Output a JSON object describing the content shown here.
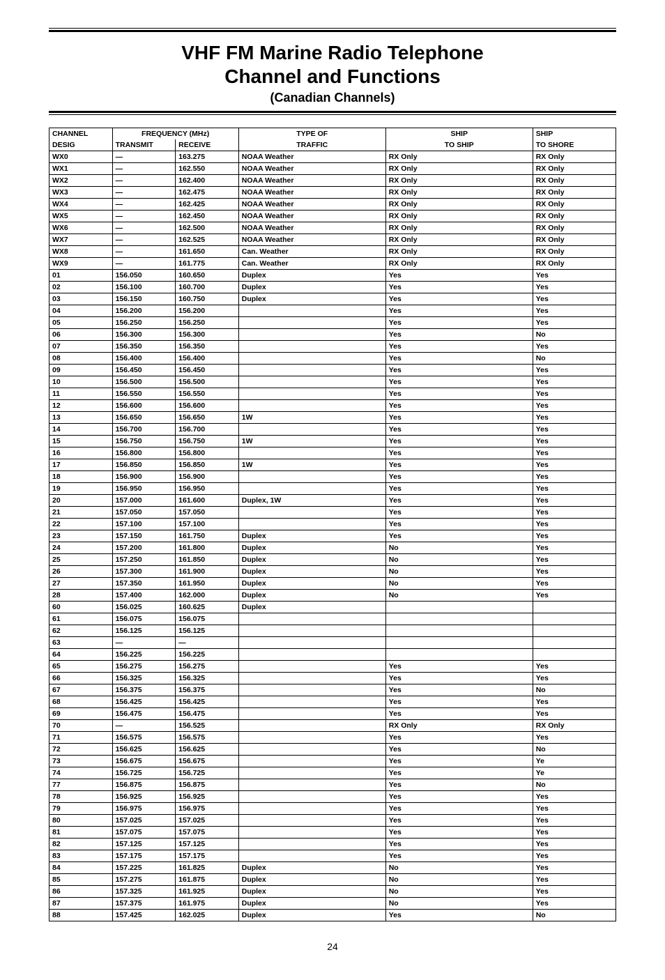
{
  "title_line1": "VHF FM Marine Radio Telephone",
  "title_line2": "Channel and Functions",
  "paren": "(Canadian Channels)",
  "page_number": "24",
  "headers": {
    "row1": [
      "CHANNEL",
      "FREQUENCY (MHz)",
      "TYPE OF",
      "SHIP",
      "SHIP"
    ],
    "row2": [
      "DESIG",
      "TRANSMIT",
      "RECEIVE",
      "TRAFFIC",
      "TO SHIP",
      "TO SHORE"
    ]
  },
  "rows": [
    [
      "WX0",
      "—",
      "163.275",
      "NOAA Weather",
      "RX Only",
      "RX Only"
    ],
    [
      "WX1",
      "—",
      "162.550",
      "NOAA Weather",
      "RX Only",
      "RX Only"
    ],
    [
      "WX2",
      "—",
      "162.400",
      "NOAA Weather",
      "RX Only",
      "RX Only"
    ],
    [
      "WX3",
      "—",
      "162.475",
      "NOAA Weather",
      "RX Only",
      "RX Only"
    ],
    [
      "WX4",
      "—",
      "162.425",
      "NOAA Weather",
      "RX Only",
      "RX Only"
    ],
    [
      "WX5",
      "—",
      "162.450",
      "NOAA Weather",
      "RX Only",
      "RX Only"
    ],
    [
      "WX6",
      "—",
      "162.500",
      "NOAA Weather",
      "RX Only",
      "RX Only"
    ],
    [
      "WX7",
      "—",
      "162.525",
      "NOAA Weather",
      "RX Only",
      "RX Only"
    ],
    [
      "WX8",
      "—",
      "161.650",
      "Can. Weather",
      "RX Only",
      "RX Only"
    ],
    [
      "WX9",
      "—",
      "161.775",
      "Can. Weather",
      "RX Only",
      "RX Only"
    ],
    [
      "01",
      "156.050",
      "160.650",
      "Duplex",
      "Yes",
      "Yes"
    ],
    [
      "02",
      "156.100",
      "160.700",
      "Duplex",
      "Yes",
      "Yes"
    ],
    [
      "03",
      "156.150",
      "160.750",
      "Duplex",
      "Yes",
      "Yes"
    ],
    [
      "04",
      "156.200",
      "156.200",
      "",
      "Yes",
      "Yes"
    ],
    [
      "05",
      "156.250",
      "156.250",
      "",
      "Yes",
      "Yes"
    ],
    [
      "06",
      "156.300",
      "156.300",
      "",
      "Yes",
      "No"
    ],
    [
      "07",
      "156.350",
      "156.350",
      "",
      "Yes",
      "Yes"
    ],
    [
      "08",
      "156.400",
      "156.400",
      "",
      "Yes",
      "No"
    ],
    [
      "09",
      "156.450",
      "156.450",
      "",
      "Yes",
      "Yes"
    ],
    [
      "10",
      "156.500",
      "156.500",
      "",
      "Yes",
      "Yes"
    ],
    [
      "11",
      "156.550",
      "156.550",
      "",
      "Yes",
      "Yes"
    ],
    [
      "12",
      "156.600",
      "156.600",
      "",
      "Yes",
      "Yes"
    ],
    [
      "13",
      "156.650",
      "156.650",
      "1W",
      "Yes",
      "Yes"
    ],
    [
      "14",
      "156.700",
      "156.700",
      "",
      "Yes",
      "Yes"
    ],
    [
      "15",
      "156.750",
      "156.750",
      "1W",
      "Yes",
      "Yes"
    ],
    [
      "16",
      "156.800",
      "156.800",
      "",
      "Yes",
      "Yes"
    ],
    [
      "17",
      "156.850",
      "156.850",
      "1W",
      "Yes",
      "Yes"
    ],
    [
      "18",
      "156.900",
      "156.900",
      "",
      "Yes",
      "Yes"
    ],
    [
      "19",
      "156.950",
      "156.950",
      "",
      "Yes",
      "Yes"
    ],
    [
      "20",
      "157.000",
      "161.600",
      "Duplex, 1W",
      "Yes",
      "Yes"
    ],
    [
      "21",
      "157.050",
      "157.050",
      "",
      "Yes",
      "Yes"
    ],
    [
      "22",
      "157.100",
      "157.100",
      "",
      "Yes",
      "Yes"
    ],
    [
      "23",
      "157.150",
      "161.750",
      "Duplex",
      "Yes",
      "Yes"
    ],
    [
      "24",
      "157.200",
      "161.800",
      "Duplex",
      "No",
      "Yes"
    ],
    [
      "25",
      "157.250",
      "161.850",
      "Duplex",
      "No",
      "Yes"
    ],
    [
      "26",
      "157.300",
      "161.900",
      "Duplex",
      "No",
      "Yes"
    ],
    [
      "27",
      "157.350",
      "161.950",
      "Duplex",
      "No",
      "Yes"
    ],
    [
      "28",
      "157.400",
      "162.000",
      "Duplex",
      "No",
      "Yes"
    ],
    [
      "60",
      "156.025",
      "160.625",
      "Duplex",
      "",
      ""
    ],
    [
      "61",
      "156.075",
      "156.075",
      "",
      "",
      ""
    ],
    [
      "62",
      "156.125",
      "156.125",
      "",
      "",
      ""
    ],
    [
      "63",
      "—",
      "—",
      "",
      "",
      ""
    ],
    [
      "64",
      "156.225",
      "156.225",
      "",
      "",
      ""
    ],
    [
      "65",
      "156.275",
      "156.275",
      "",
      "Yes",
      "Yes"
    ],
    [
      "66",
      "156.325",
      "156.325",
      "",
      "Yes",
      "Yes"
    ],
    [
      "67",
      "156.375",
      "156.375",
      "",
      "Yes",
      "No"
    ],
    [
      "68",
      "156.425",
      "156.425",
      "",
      "Yes",
      "Yes"
    ],
    [
      "69",
      "156.475",
      "156.475",
      "",
      "Yes",
      "Yes"
    ],
    [
      "70",
      "—",
      "156.525",
      "",
      "RX Only",
      "RX Only"
    ],
    [
      "71",
      "156.575",
      "156.575",
      "",
      "Yes",
      "Yes"
    ],
    [
      "72",
      "156.625",
      "156.625",
      "",
      "Yes",
      "No"
    ],
    [
      "73",
      "156.675",
      "156.675",
      "",
      "Yes",
      "Ye"
    ],
    [
      "74",
      "156.725",
      "156.725",
      "",
      "Yes",
      "Ye"
    ],
    [
      "77",
      "156.875",
      "156.875",
      "",
      "Yes",
      "No"
    ],
    [
      "78",
      "156.925",
      "156.925",
      "",
      "Yes",
      "Yes"
    ],
    [
      "79",
      "156.975",
      "156.975",
      "",
      "Yes",
      "Yes"
    ],
    [
      "80",
      "157.025",
      "157.025",
      "",
      "Yes",
      "Yes"
    ],
    [
      "81",
      "157.075",
      "157.075",
      "",
      "Yes",
      "Yes"
    ],
    [
      "82",
      "157.125",
      "157.125",
      "",
      "Yes",
      "Yes"
    ],
    [
      "83",
      "157.175",
      "157.175",
      "",
      "Yes",
      "Yes"
    ],
    [
      "84",
      "157.225",
      "161.825",
      "Duplex",
      "No",
      "Yes"
    ],
    [
      "85",
      "157.275",
      "161.875",
      "Duplex",
      "No",
      "Yes"
    ],
    [
      "86",
      "157.325",
      "161.925",
      "Duplex",
      "No",
      "Yes"
    ],
    [
      "87",
      "157.375",
      "161.975",
      "Duplex",
      "No",
      "Yes"
    ],
    [
      "88",
      "157.425",
      "162.025",
      "Duplex",
      "Yes",
      "No"
    ]
  ]
}
